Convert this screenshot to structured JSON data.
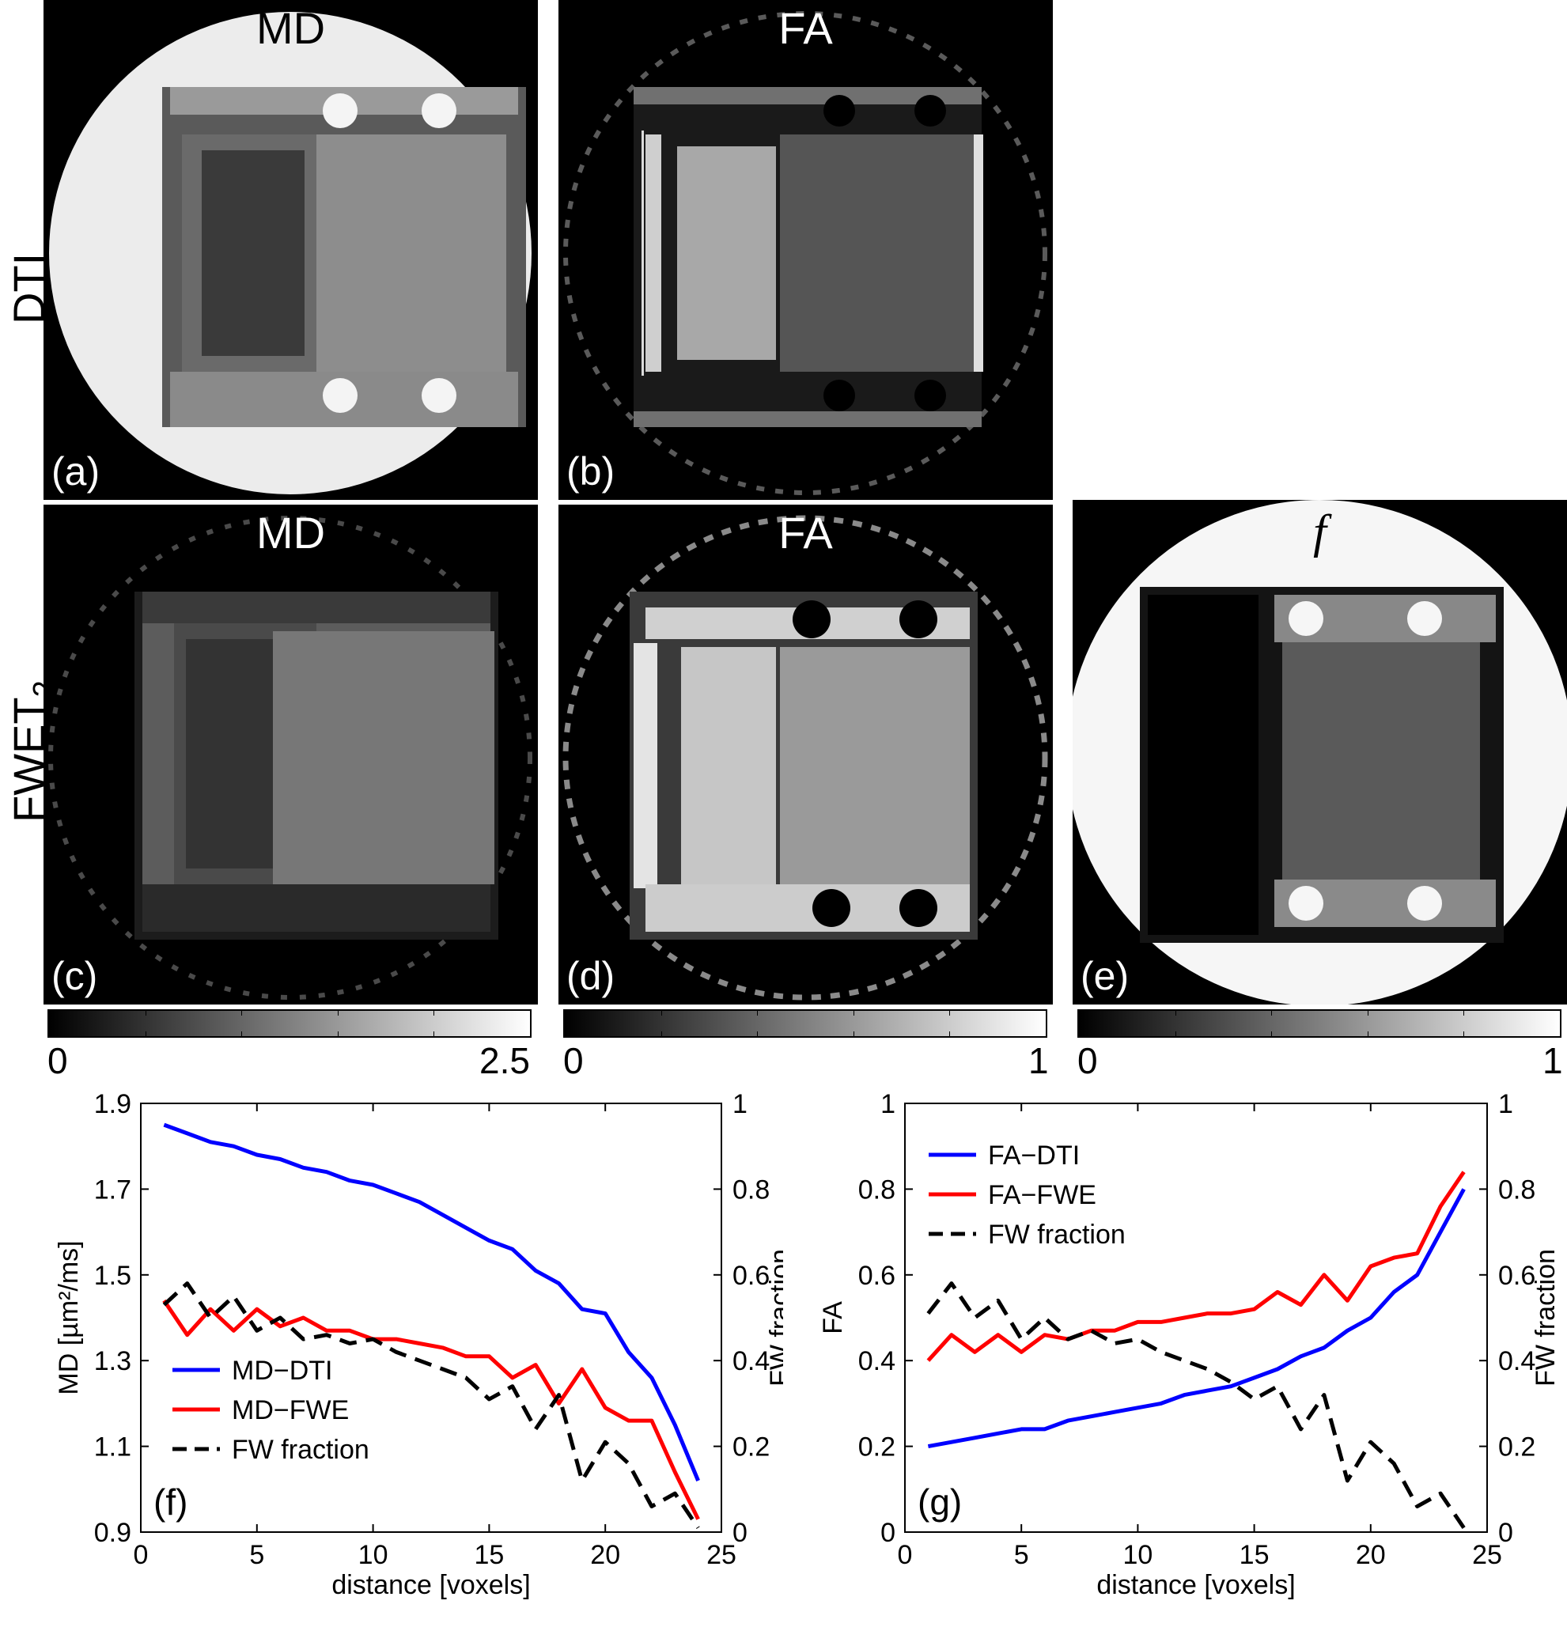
{
  "row_labels": {
    "top": "DTI",
    "bottom_main": "FWET",
    "bottom_sub": "2"
  },
  "panels": {
    "a": {
      "title": "MD",
      "label": "(a)"
    },
    "b": {
      "title": "FA",
      "label": "(b)"
    },
    "c": {
      "title": "MD",
      "label": "(c)"
    },
    "d": {
      "title": "FA",
      "label": "(d)"
    },
    "e": {
      "title": "f",
      "label": "(e)"
    }
  },
  "colorbars": {
    "md": {
      "min": "0",
      "max": "2.5"
    },
    "fa": {
      "min": "0",
      "max": "1"
    },
    "f": {
      "min": "0",
      "max": "1"
    }
  },
  "chart_data": [
    {
      "type": "line",
      "panel_label": "(f)",
      "xlabel": "distance [voxels]",
      "ylabel": "MD [µm²/ms]",
      "ylabel_right": "FW fraction",
      "xlim": [
        0,
        25
      ],
      "ylim": [
        0.9,
        1.9
      ],
      "ylim_right": [
        0,
        1
      ],
      "x_ticks": [
        "0",
        "5",
        "10",
        "15",
        "20",
        "25"
      ],
      "y_ticks": [
        "0.9",
        "1.1",
        "1.3",
        "1.5",
        "1.7",
        "1.9"
      ],
      "y_ticks_right": [
        "0",
        "0.2",
        "0.4",
        "0.6",
        "0.8",
        "1"
      ],
      "legend_position": "lower-left",
      "x": [
        1,
        2,
        3,
        4,
        5,
        6,
        7,
        8,
        9,
        10,
        11,
        12,
        13,
        14,
        15,
        16,
        17,
        18,
        19,
        20,
        21,
        22,
        23,
        24
      ],
      "series": [
        {
          "name": "MD−DTI",
          "color": "#0000ff",
          "dash": false,
          "axis": "left",
          "values": [
            1.85,
            1.83,
            1.81,
            1.8,
            1.78,
            1.77,
            1.75,
            1.74,
            1.72,
            1.71,
            1.69,
            1.67,
            1.64,
            1.61,
            1.58,
            1.56,
            1.51,
            1.48,
            1.42,
            1.41,
            1.32,
            1.26,
            1.15,
            1.02
          ]
        },
        {
          "name": "MD−FWE",
          "color": "#ff0000",
          "dash": false,
          "axis": "left",
          "values": [
            1.44,
            1.36,
            1.42,
            1.37,
            1.42,
            1.38,
            1.4,
            1.37,
            1.37,
            1.35,
            1.35,
            1.34,
            1.33,
            1.31,
            1.31,
            1.26,
            1.29,
            1.2,
            1.28,
            1.19,
            1.16,
            1.16,
            1.04,
            0.93
          ]
        },
        {
          "name": "FW fraction",
          "color": "#000000",
          "dash": true,
          "axis": "right",
          "values": [
            0.53,
            0.58,
            0.5,
            0.55,
            0.47,
            0.5,
            0.45,
            0.46,
            0.44,
            0.45,
            0.42,
            0.4,
            0.38,
            0.36,
            0.31,
            0.34,
            0.24,
            0.32,
            0.12,
            0.21,
            0.16,
            0.06,
            0.09,
            0.01
          ]
        }
      ]
    },
    {
      "type": "line",
      "panel_label": "(g)",
      "xlabel": "distance [voxels]",
      "ylabel": "FA",
      "ylabel_right": "FW fraction",
      "xlim": [
        0,
        25
      ],
      "ylim": [
        0,
        1
      ],
      "ylim_right": [
        0,
        1
      ],
      "x_ticks": [
        "0",
        "5",
        "10",
        "15",
        "20",
        "25"
      ],
      "y_ticks": [
        "0",
        "0.2",
        "0.4",
        "0.6",
        "0.8",
        "1"
      ],
      "y_ticks_right": [
        "0",
        "0.2",
        "0.4",
        "0.6",
        "0.8",
        "1"
      ],
      "legend_position": "upper-left",
      "x": [
        1,
        2,
        3,
        4,
        5,
        6,
        7,
        8,
        9,
        10,
        11,
        12,
        13,
        14,
        15,
        16,
        17,
        18,
        19,
        20,
        21,
        22,
        23,
        24
      ],
      "series": [
        {
          "name": "FA−DTI",
          "color": "#0000ff",
          "dash": false,
          "axis": "left",
          "values": [
            0.2,
            0.21,
            0.22,
            0.23,
            0.24,
            0.24,
            0.26,
            0.27,
            0.28,
            0.29,
            0.3,
            0.32,
            0.33,
            0.34,
            0.36,
            0.38,
            0.41,
            0.43,
            0.47,
            0.5,
            0.56,
            0.6,
            0.7,
            0.8
          ]
        },
        {
          "name": "FA−FWE",
          "color": "#ff0000",
          "dash": false,
          "axis": "left",
          "values": [
            0.4,
            0.46,
            0.42,
            0.46,
            0.42,
            0.46,
            0.45,
            0.47,
            0.47,
            0.49,
            0.49,
            0.5,
            0.51,
            0.51,
            0.52,
            0.56,
            0.53,
            0.6,
            0.54,
            0.62,
            0.64,
            0.65,
            0.76,
            0.84
          ]
        },
        {
          "name": "FW fraction",
          "color": "#000000",
          "dash": true,
          "axis": "right",
          "values": [
            0.51,
            0.58,
            0.5,
            0.54,
            0.45,
            0.5,
            0.45,
            0.47,
            0.44,
            0.45,
            0.42,
            0.4,
            0.38,
            0.35,
            0.31,
            0.34,
            0.24,
            0.32,
            0.12,
            0.21,
            0.16,
            0.06,
            0.09,
            0.01
          ]
        }
      ]
    }
  ]
}
